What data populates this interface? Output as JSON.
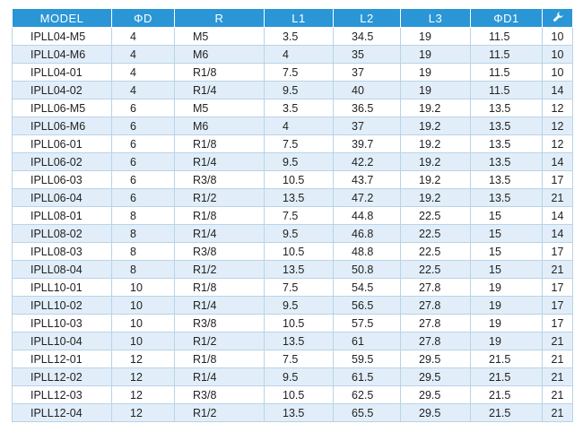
{
  "table": {
    "headers": [
      "MODEL",
      "ΦD",
      "R",
      "L1",
      "L2",
      "L3",
      "ΦD1",
      ""
    ],
    "last_header_icon": "wrench-icon",
    "rows": [
      [
        "IPLL04-M5",
        "4",
        "M5",
        "3.5",
        "34.5",
        "19",
        "11.5",
        "10"
      ],
      [
        "IPLL04-M6",
        "4",
        "M6",
        "4",
        "35",
        "19",
        "11.5",
        "10"
      ],
      [
        "IPLL04-01",
        "4",
        "R1/8",
        "7.5",
        "37",
        "19",
        "11.5",
        "10"
      ],
      [
        "IPLL04-02",
        "4",
        "R1/4",
        "9.5",
        "40",
        "19",
        "11.5",
        "14"
      ],
      [
        "IPLL06-M5",
        "6",
        "M5",
        "3.5",
        "36.5",
        "19.2",
        "13.5",
        "12"
      ],
      [
        "IPLL06-M6",
        "6",
        "M6",
        "4",
        "37",
        "19.2",
        "13.5",
        "12"
      ],
      [
        "IPLL06-01",
        "6",
        "R1/8",
        "7.5",
        "39.7",
        "19.2",
        "13.5",
        "12"
      ],
      [
        "IPLL06-02",
        "6",
        "R1/4",
        "9.5",
        "42.2",
        "19.2",
        "13.5",
        "14"
      ],
      [
        "IPLL06-03",
        "6",
        "R3/8",
        "10.5",
        "43.7",
        "19.2",
        "13.5",
        "17"
      ],
      [
        "IPLL06-04",
        "6",
        "R1/2",
        "13.5",
        "47.2",
        "19.2",
        "13.5",
        "21"
      ],
      [
        "IPLL08-01",
        "8",
        "R1/8",
        "7.5",
        "44.8",
        "22.5",
        "15",
        "14"
      ],
      [
        "IPLL08-02",
        "8",
        "R1/4",
        "9.5",
        "46.8",
        "22.5",
        "15",
        "14"
      ],
      [
        "IPLL08-03",
        "8",
        "R3/8",
        "10.5",
        "48.8",
        "22.5",
        "15",
        "17"
      ],
      [
        "IPLL08-04",
        "8",
        "R1/2",
        "13.5",
        "50.8",
        "22.5",
        "15",
        "21"
      ],
      [
        "IPLL10-01",
        "10",
        "R1/8",
        "7.5",
        "54.5",
        "27.8",
        "19",
        "17"
      ],
      [
        "IPLL10-02",
        "10",
        "R1/4",
        "9.5",
        "56.5",
        "27.8",
        "19",
        "17"
      ],
      [
        "IPLL10-03",
        "10",
        "R3/8",
        "10.5",
        "57.5",
        "27.8",
        "19",
        "17"
      ],
      [
        "IPLL10-04",
        "10",
        "R1/2",
        "13.5",
        "61",
        "27.8",
        "19",
        "21"
      ],
      [
        "IPLL12-01",
        "12",
        "R1/8",
        "7.5",
        "59.5",
        "29.5",
        "21.5",
        "21"
      ],
      [
        "IPLL12-02",
        "12",
        "R1/4",
        "9.5",
        "61.5",
        "29.5",
        "21.5",
        "21"
      ],
      [
        "IPLL12-03",
        "12",
        "R3/8",
        "10.5",
        "62.5",
        "29.5",
        "21.5",
        "21"
      ],
      [
        "IPLL12-04",
        "12",
        "R1/2",
        "13.5",
        "65.5",
        "29.5",
        "21.5",
        "21"
      ]
    ]
  },
  "colors": {
    "header_bg": "#2a96d6",
    "row_alt_bg": "#e1eef9",
    "border": "#b9d3e6"
  }
}
